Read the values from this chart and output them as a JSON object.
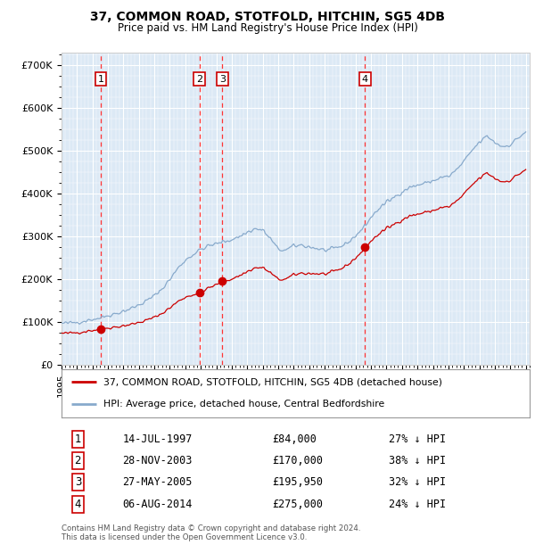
{
  "title": "37, COMMON ROAD, STOTFOLD, HITCHIN, SG5 4DB",
  "subtitle": "Price paid vs. HM Land Registry's House Price Index (HPI)",
  "ylim": [
    0,
    730000
  ],
  "yticks": [
    0,
    100000,
    200000,
    300000,
    400000,
    500000,
    600000,
    700000
  ],
  "ytick_labels": [
    "£0",
    "£100K",
    "£200K",
    "£300K",
    "£400K",
    "£500K",
    "£600K",
    "£700K"
  ],
  "background_color": "#dce9f5",
  "sale_year_floats": [
    1997.54,
    2003.91,
    2005.4,
    2014.6
  ],
  "sale_prices": [
    84000,
    170000,
    195950,
    275000
  ],
  "sale_labels": [
    "1",
    "2",
    "3",
    "4"
  ],
  "legend_line1": "37, COMMON ROAD, STOTFOLD, HITCHIN, SG5 4DB (detached house)",
  "legend_line2": "HPI: Average price, detached house, Central Bedfordshire",
  "table_rows": [
    [
      "1",
      "14-JUL-1997",
      "£84,000",
      "27% ↓ HPI"
    ],
    [
      "2",
      "28-NOV-2003",
      "£170,000",
      "38% ↓ HPI"
    ],
    [
      "3",
      "27-MAY-2005",
      "£195,950",
      "32% ↓ HPI"
    ],
    [
      "4",
      "06-AUG-2014",
      "£275,000",
      "24% ↓ HPI"
    ]
  ],
  "footer": "Contains HM Land Registry data © Crown copyright and database right 2024.\nThis data is licensed under the Open Government Licence v3.0.",
  "red_color": "#cc0000",
  "blue_color": "#88aacc",
  "dashed_color": "#ff4444"
}
